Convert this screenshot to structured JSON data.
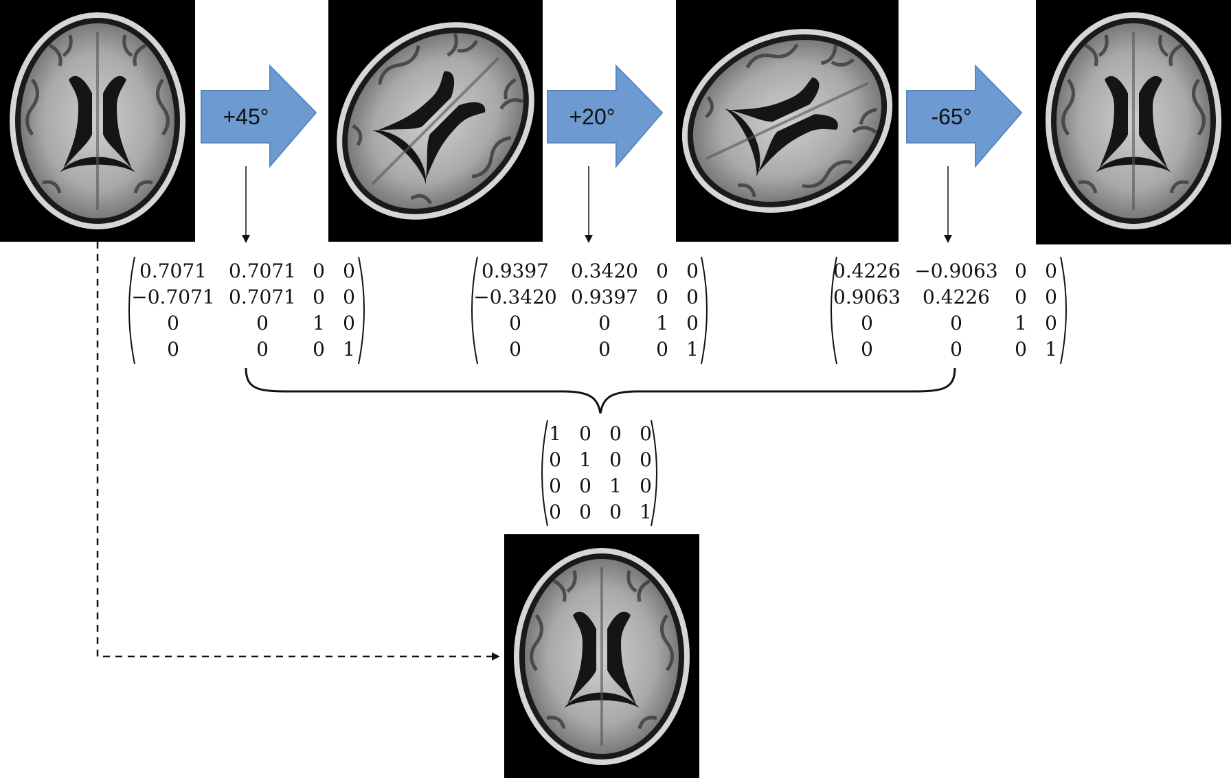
{
  "colors": {
    "arrow_fill": "#6d9bd1",
    "arrow_stroke": "#5a88be",
    "background": "#ffffff",
    "scan_background": "#000000",
    "ink": "#111111"
  },
  "steps": [
    {
      "label": "+45°",
      "rotation_deg": 45,
      "matrix": [
        [
          "0.7071",
          "0.7071",
          "0",
          "0"
        ],
        [
          "−0.7071",
          "0.7071",
          "0",
          "0"
        ],
        [
          "0",
          "0",
          "1",
          "0"
        ],
        [
          "0",
          "0",
          "0",
          "1"
        ]
      ]
    },
    {
      "label": "+20°",
      "rotation_deg": 20,
      "matrix": [
        [
          "0.9397",
          "0.3420",
          "0",
          "0"
        ],
        [
          "−0.3420",
          "0.9397",
          "0",
          "0"
        ],
        [
          "0",
          "0",
          "1",
          "0"
        ],
        [
          "0",
          "0",
          "0",
          "1"
        ]
      ]
    },
    {
      "label": "-65°",
      "rotation_deg": -65,
      "matrix": [
        [
          "0.4226",
          "−0.9063",
          "0",
          "0"
        ],
        [
          "0.9063",
          "0.4226",
          "0",
          "0"
        ],
        [
          "0",
          "0",
          "1",
          "0"
        ],
        [
          "0",
          "0",
          "0",
          "1"
        ]
      ]
    }
  ],
  "scans": [
    {
      "name": "original-scan",
      "rotation_deg": 0
    },
    {
      "name": "rotated-45-scan",
      "rotation_deg": 45
    },
    {
      "name": "rotated-65-scan",
      "rotation_deg": 65
    },
    {
      "name": "rotated-0-scan",
      "rotation_deg": 0
    }
  ],
  "result_scan": {
    "rotation_deg": 0
  },
  "composite_matrix": [
    [
      "1",
      "0",
      "0",
      "0"
    ],
    [
      "0",
      "1",
      "0",
      "0"
    ],
    [
      "0",
      "0",
      "1",
      "0"
    ],
    [
      "0",
      "0",
      "0",
      "1"
    ]
  ]
}
